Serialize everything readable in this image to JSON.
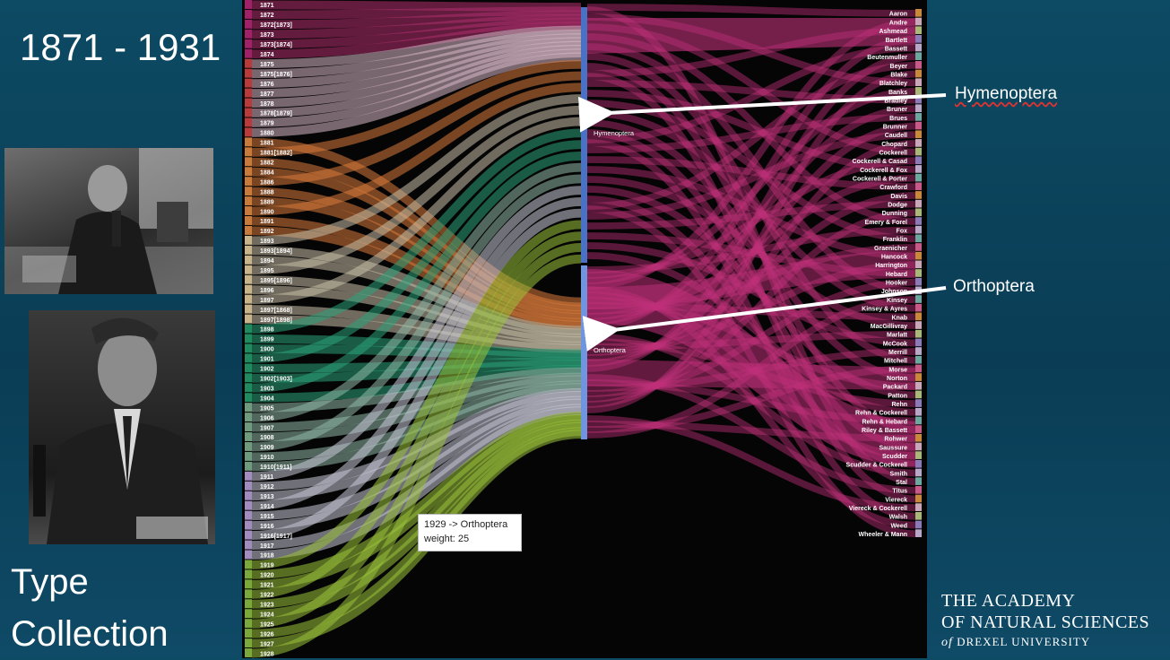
{
  "slide": {
    "title": "1871 - 1931",
    "collection_line1": "Type",
    "collection_line2": "Collection"
  },
  "photos": [
    {
      "subject": "man at microscope"
    },
    {
      "subject": "portrait of man writing"
    }
  ],
  "callouts": {
    "hymenoptera": "Hymenoptera",
    "orthoptera": "Orthoptera"
  },
  "logo": {
    "line1": "THE ACADEMY",
    "line2": "OF NATURAL SCIENCES",
    "line3_prefix": "of",
    "line3": "DREXEL UNIVERSITY"
  },
  "tooltip": {
    "line1": "1929 -> Orthoptera",
    "line2": "weight: 25"
  },
  "sankey": {
    "middle_nodes": [
      {
        "label": "Hymenoptera",
        "color": "#4a72c4"
      },
      {
        "label": "Orthoptera",
        "color": "#6f95df"
      }
    ],
    "year_nodes": [
      "1871",
      "1872",
      "1872[1873]",
      "1873",
      "1873[1874]",
      "1874",
      "1875",
      "1875[1876]",
      "1876",
      "1877",
      "1878",
      "1878[1879]",
      "1879",
      "1880",
      "1881",
      "1881[1882]",
      "1882",
      "1884",
      "1886",
      "1888",
      "1889",
      "1890",
      "1891",
      "1892",
      "1893",
      "1893[1894]",
      "1894",
      "1895",
      "1895[1896]",
      "1896",
      "1897",
      "1897[1868]",
      "1897[1898]",
      "1898",
      "1899",
      "1900",
      "1901",
      "1902",
      "1902[1903]",
      "1903",
      "1904",
      "1905",
      "1906",
      "1907",
      "1908",
      "1909",
      "1910",
      "1910[1911]",
      "1911",
      "1912",
      "1913",
      "1914",
      "1915",
      "1916",
      "1916[1917]",
      "1917",
      "1918",
      "1919",
      "1920",
      "1921",
      "1922",
      "1923",
      "1924",
      "1925",
      "1926",
      "1927",
      "1928"
    ],
    "author_nodes": [
      "Aaron",
      "Andre",
      "Ashmead",
      "Bartlett",
      "Bassett",
      "Beutenmuller",
      "Beyer",
      "Blake",
      "Blatchley",
      "Banks",
      "Bradley",
      "Bruner",
      "Brues",
      "Brunner",
      "Caudell",
      "Chopard",
      "Cockerell",
      "Cockerell & Casad",
      "Cockerell & Fox",
      "Cockerell & Porter",
      "Crawford",
      "Davis",
      "Dodge",
      "Dunning",
      "Emery & Forel",
      "Fox",
      "Franklin",
      "Graenicher",
      "Hancock",
      "Harrington",
      "Hebard",
      "Hooker",
      "Johnson",
      "Kinsey",
      "Kinsey & Ayres",
      "Knab",
      "MacGillivray",
      "Marlatt",
      "McCook",
      "Merrill",
      "Mitchell",
      "Morse",
      "Norton",
      "Packard",
      "Patton",
      "Rehn",
      "Rehn & Cockerell",
      "Rehn & Hebard",
      "Riley & Bassett",
      "Rohwer",
      "Saussure",
      "Scudder",
      "Scudder & Cockerell",
      "Smith",
      "Stal",
      "Titus",
      "Viereck",
      "Viereck & Cockerell",
      "Walsh",
      "Weed",
      "Wheeler & Mann"
    ]
  },
  "colors": {
    "background": "#0b4058",
    "chart_bg": "#050505",
    "magenta_flow": "#c0307a",
    "callout_arrow": "#ffffff"
  }
}
